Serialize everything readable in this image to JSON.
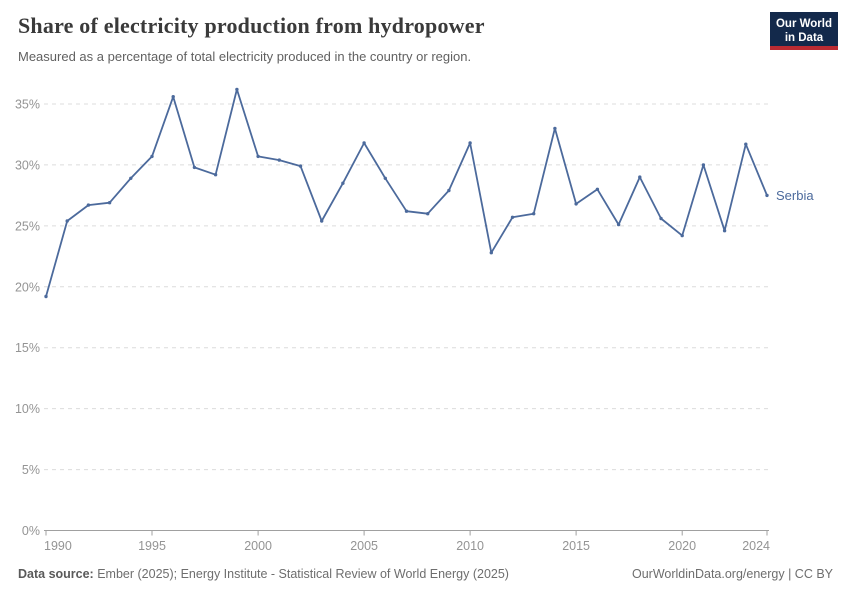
{
  "header": {
    "title": "Share of electricity production from hydropower",
    "subtitle": "Measured as a percentage of total electricity produced in the country or region.",
    "logo": {
      "line1": "Our World",
      "line2": "in Data"
    }
  },
  "chart_data": {
    "type": "line",
    "title": "Share of electricity production from hydropower",
    "xlabel": "",
    "ylabel": "",
    "xlim": [
      1990,
      2024
    ],
    "ylim": [
      0,
      35
    ],
    "grid": true,
    "legend_position": "right-of-line-end",
    "ytick_suffix": "%",
    "yticks": [
      0,
      5,
      10,
      15,
      20,
      25,
      30,
      35
    ],
    "xticks": [
      1990,
      1995,
      2000,
      2005,
      2010,
      2015,
      2020,
      2024
    ],
    "x": [
      1990,
      1991,
      1992,
      1993,
      1994,
      1995,
      1996,
      1997,
      1998,
      1999,
      2000,
      2001,
      2002,
      2003,
      2004,
      2005,
      2006,
      2007,
      2008,
      2009,
      2010,
      2011,
      2012,
      2013,
      2014,
      2015,
      2016,
      2017,
      2018,
      2019,
      2020,
      2021,
      2022,
      2023,
      2024
    ],
    "series": [
      {
        "name": "Serbia",
        "color": "#4c6a9c",
        "values": [
          19.2,
          25.4,
          26.7,
          26.9,
          28.9,
          30.7,
          35.6,
          29.8,
          29.2,
          36.2,
          30.7,
          30.4,
          29.9,
          25.4,
          28.5,
          31.8,
          28.9,
          26.2,
          26.0,
          27.9,
          31.8,
          22.8,
          25.7,
          26.0,
          33.0,
          26.8,
          28.0,
          25.1,
          29.0,
          25.6,
          24.2,
          30.0,
          24.6,
          31.7,
          27.5
        ]
      }
    ]
  },
  "footer": {
    "source_label": "Data source:",
    "source_text": "Ember (2025); Energy Institute - Statistical Review of World Energy (2025)",
    "credit": "OurWorldinData.org/energy | CC BY"
  },
  "colors": {
    "line": "#4c6a9c",
    "grid": "#dcdcdc",
    "axis": "#a0a0a0",
    "tick_label": "#949494",
    "logo_bg": "#13294b",
    "logo_red": "#bb2b32"
  }
}
